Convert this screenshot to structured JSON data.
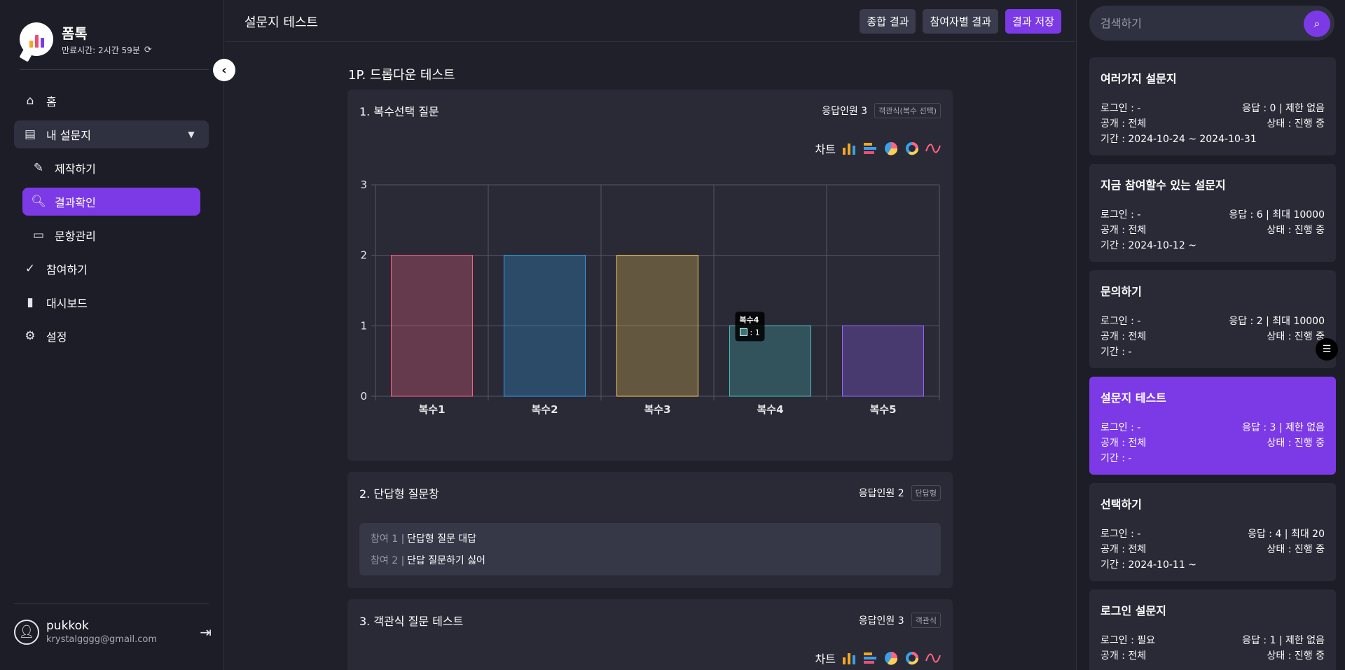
{
  "brand": {
    "name": "폼톡",
    "expire": "만료시간: 2시간 59분"
  },
  "nav": {
    "home": "홈",
    "my_surveys": "내 설문지",
    "sub": {
      "create": "제작하기",
      "results": "결과확인",
      "items": "문항관리"
    },
    "participate": "참여하기",
    "dashboard": "대시보드",
    "settings": "설정"
  },
  "user": {
    "name": "pukkok",
    "email": "krystalgggg@gmail.com"
  },
  "topbar": {
    "title": "설문지 테스트",
    "btn_summary": "종합 결과",
    "btn_participant": "참여자별 결과",
    "btn_save": "결과 저장"
  },
  "page": {
    "section_title": "1P. 드롭다운 테스트"
  },
  "questions": [
    {
      "title": "1. 복수선택 질문",
      "count": "응답인원 3",
      "type": "객관식(복수 선택)",
      "chart_label": "차트"
    },
    {
      "title": "2. 단답형 질문창",
      "count": "응답인원 2",
      "type": "단답형",
      "answers": [
        {
          "no": "참여 1 |",
          "text": "단답형 질문 대답"
        },
        {
          "no": "참여 2 |",
          "text": "단답 질문하기 싫어"
        }
      ]
    },
    {
      "title": "3. 객관식 질문 테스트",
      "count": "응답인원 3",
      "type": "객관식",
      "chart_label": "차트"
    }
  ],
  "chart_data": {
    "type": "bar",
    "categories": [
      "복수1",
      "복수2",
      "복수3",
      "복수4",
      "복수5"
    ],
    "values": [
      2,
      2,
      2,
      1,
      1
    ],
    "ylim": [
      0,
      3
    ],
    "yticks": [
      "0",
      "1",
      "2",
      "3"
    ],
    "grid": true,
    "colors": [
      "#ff6384",
      "#36a2eb",
      "#ffce56",
      "#4bc0c0",
      "#9966ff"
    ],
    "tooltip": {
      "title": "복수4",
      "value": ": 1"
    }
  },
  "search": {
    "placeholder": "검색하기"
  },
  "surveys": [
    {
      "title": "여러가지 설문지",
      "login": "로그인 : -",
      "response": "응답 : 0 | 제한 없음",
      "open": "공개 : 전체",
      "status": "상태 : 진행 중",
      "period": "기간 : 2024-10-24 ~ 2024-10-31",
      "active": false
    },
    {
      "title": "지금 참여할수 있는 설문지",
      "login": "로그인 : -",
      "response": "응답 : 6 | 최대 10000",
      "open": "공개 : 전체",
      "status": "상태 : 진행 중",
      "period": "기간 : 2024-10-12 ~",
      "active": false
    },
    {
      "title": "문의하기",
      "login": "로그인 : -",
      "response": "응답 : 2 | 최대 10000",
      "open": "공개 : 전체",
      "status": "상태 : 진행 중",
      "period": "기간 : -",
      "active": false
    },
    {
      "title": "설문지 테스트",
      "login": "로그인 : -",
      "response": "응답 : 3 | 제한 없음",
      "open": "공개 : 전체",
      "status": "상태 : 진행 중",
      "period": "기간 : -",
      "active": true
    },
    {
      "title": "선택하기",
      "login": "로그인 : -",
      "response": "응답 : 4 | 최대 20",
      "open": "공개 : 전체",
      "status": "상태 : 진행 중",
      "period": "기간 : 2024-10-11 ~",
      "active": false
    },
    {
      "title": "로그인 설문지",
      "login": "로그인 : 필요",
      "response": "응답 : 1 | 제한 없음",
      "open": "공개 : 전체",
      "status": "상태 : 진행 중",
      "period": "",
      "active": false
    }
  ],
  "colors": {
    "accent": "#7b3ae6",
    "panel": "#292a36",
    "background": "#1f2029"
  }
}
